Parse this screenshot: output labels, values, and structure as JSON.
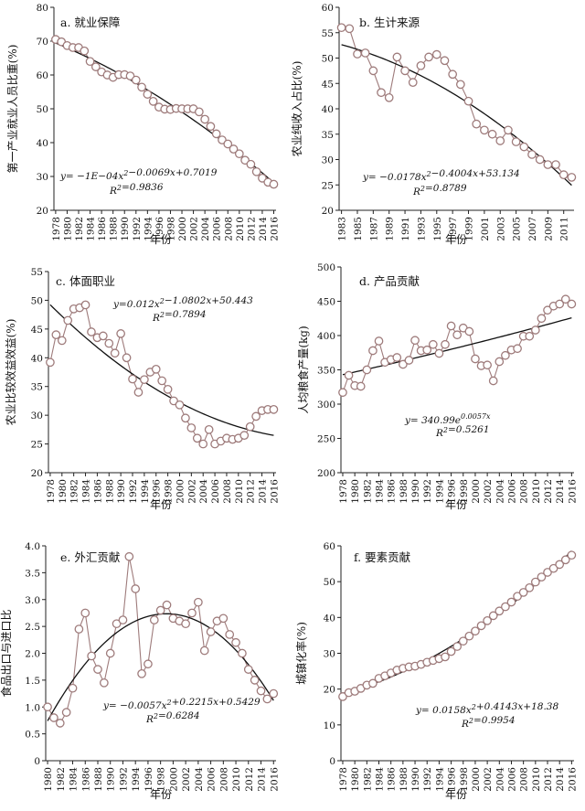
{
  "chart_data": [
    {
      "type": "scatter",
      "title": "a. 就业保障",
      "xlabel": "年份",
      "ylabel": "第一产业就业人员比重(%)",
      "ylim": [
        20,
        80
      ],
      "yticks": [
        20,
        30,
        40,
        50,
        60,
        70,
        80
      ],
      "xticks": [
        1978,
        1980,
        1982,
        1984,
        1986,
        1988,
        1990,
        1992,
        1994,
        1996,
        1998,
        2000,
        2002,
        2004,
        2006,
        2008,
        2010,
        2012,
        2014,
        2016
      ],
      "x": [
        1978,
        1979,
        1980,
        1981,
        1982,
        1983,
        1984,
        1985,
        1986,
        1987,
        1988,
        1989,
        1990,
        1991,
        1992,
        1993,
        1994,
        1995,
        1996,
        1997,
        1998,
        1999,
        2000,
        2001,
        2002,
        2003,
        2004,
        2005,
        2006,
        2007,
        2008,
        2009,
        2010,
        2011,
        2012,
        2013,
        2014,
        2015,
        2016
      ],
      "y": [
        70.5,
        69.8,
        68.7,
        68.1,
        68.1,
        67.1,
        64.0,
        62.4,
        60.9,
        60.0,
        59.3,
        60.1,
        60.1,
        59.7,
        58.5,
        56.4,
        54.3,
        52.2,
        50.5,
        49.9,
        49.8,
        50.1,
        50.0,
        50.0,
        50.0,
        49.1,
        46.9,
        44.8,
        42.6,
        40.8,
        39.6,
        38.1,
        36.7,
        34.8,
        33.6,
        31.4,
        29.5,
        28.3,
        27.7
      ],
      "trend": {
        "type": "poly2",
        "a": -0.0001,
        "b": -0.0069,
        "c": 0.7019
      },
      "equation": "y= −1E−04x²−0.0069x+0.7019",
      "r2": "R²=0.9836",
      "grid": false
    },
    {
      "type": "scatter",
      "title": "b. 生计来源",
      "xlabel": "年份",
      "ylabel": "农业纯收入占比(%)",
      "ylim": [
        20,
        60
      ],
      "yticks": [
        20,
        25,
        30,
        35,
        40,
        45,
        50,
        55,
        60
      ],
      "xticks": [
        1983,
        1985,
        1987,
        1989,
        1991,
        1993,
        1995,
        1997,
        1999,
        2001,
        2003,
        2005,
        2007,
        2009,
        2011
      ],
      "x": [
        1983,
        1984,
        1985,
        1986,
        1987,
        1988,
        1989,
        1990,
        1991,
        1992,
        1993,
        1994,
        1995,
        1996,
        1997,
        1998,
        1999,
        2000,
        2001,
        2002,
        2003,
        2004,
        2005,
        2006,
        2007,
        2008,
        2009,
        2010,
        2011,
        2012
      ],
      "y": [
        56.0,
        55.8,
        50.8,
        51.0,
        47.5,
        43.2,
        42.2,
        50.2,
        47.5,
        45.2,
        48.5,
        50.2,
        50.7,
        49.5,
        46.8,
        44.8,
        41.5,
        37.0,
        35.8,
        35.0,
        33.7,
        35.8,
        33.5,
        32.5,
        31.0,
        30.0,
        29.0,
        29.0,
        27.0,
        26.5
      ],
      "trend": {
        "type": "poly2",
        "a": -0.0178,
        "b": -0.4004,
        "c": 53.134
      },
      "equation": "y= −0.0178x²−0.4004x+53.134",
      "r2": "R²=0.8789",
      "grid": false
    },
    {
      "type": "scatter",
      "title": "c. 体面职业",
      "xlabel": "年份",
      "ylabel": "农业比较效益效益(%)",
      "ylim": [
        20,
        55
      ],
      "yticks": [
        20,
        25,
        30,
        35,
        40,
        45,
        50,
        55
      ],
      "xticks": [
        1978,
        1980,
        1982,
        1984,
        1986,
        1988,
        1990,
        1992,
        1994,
        1996,
        1998,
        2000,
        2002,
        2004,
        2006,
        2008,
        2010,
        2012,
        2014,
        2016
      ],
      "x": [
        1978,
        1979,
        1980,
        1981,
        1982,
        1983,
        1984,
        1985,
        1986,
        1987,
        1988,
        1989,
        1990,
        1991,
        1992,
        1993,
        1994,
        1995,
        1996,
        1997,
        1998,
        1999,
        2000,
        2001,
        2002,
        2003,
        2004,
        2005,
        2006,
        2007,
        2008,
        2009,
        2010,
        2011,
        2012,
        2013,
        2014,
        2015,
        2016
      ],
      "y": [
        39.2,
        44.0,
        43.0,
        46.5,
        48.5,
        48.7,
        49.2,
        44.5,
        43.5,
        43.8,
        42.5,
        40.8,
        44.2,
        40.0,
        36.3,
        34.0,
        36.2,
        37.5,
        38.0,
        36.0,
        34.5,
        32.5,
        31.8,
        29.5,
        27.8,
        26.0,
        25.0,
        27.5,
        25.0,
        25.5,
        26.0,
        25.8,
        26.0,
        26.5,
        28.0,
        29.8,
        30.8,
        31.0,
        31.0
      ],
      "trend": {
        "type": "poly2",
        "a": 0.012,
        "b": -1.0802,
        "c": 50.443
      },
      "equation": "y=0.012x²−1.0802x+50.443",
      "r2": "R²=0.7894",
      "grid": false
    },
    {
      "type": "scatter",
      "title": "d. 产品贡献",
      "xlabel": "年份",
      "ylabel": "人均粮食产量(kg)",
      "ylim": [
        200,
        500
      ],
      "yticks": [
        200,
        250,
        300,
        350,
        400,
        450,
        500
      ],
      "xticks": [
        1978,
        1980,
        1982,
        1984,
        1986,
        1988,
        1990,
        1992,
        1994,
        1996,
        1998,
        2000,
        2002,
        2004,
        2006,
        2008,
        2010,
        2012,
        2014,
        2016
      ],
      "x": [
        1978,
        1979,
        1980,
        1981,
        1982,
        1983,
        1984,
        1985,
        1986,
        1987,
        1988,
        1989,
        1990,
        1991,
        1992,
        1993,
        1994,
        1995,
        1996,
        1997,
        1998,
        1999,
        2000,
        2001,
        2002,
        2003,
        2004,
        2005,
        2006,
        2007,
        2008,
        2009,
        2010,
        2011,
        2012,
        2013,
        2014,
        2015,
        2016
      ],
      "y": [
        317,
        342,
        327,
        326,
        350,
        378,
        392,
        361,
        365,
        368,
        358,
        364,
        393,
        378,
        379,
        387,
        374,
        387,
        414,
        401,
        411,
        406,
        366,
        356,
        357,
        334,
        362,
        371,
        379,
        381,
        399,
        399,
        408,
        425,
        437,
        443,
        446,
        453,
        446
      ],
      "trend": {
        "type": "exp",
        "a": 340.99,
        "b": 0.0057
      },
      "equation": "y= 340.99e^0.0057x",
      "r2": "R²=0.5261",
      "grid": false
    },
    {
      "type": "scatter",
      "title": "e. 外汇贡献",
      "xlabel": "年份",
      "ylabel": "食品出口与进口比",
      "ylim": [
        0,
        4.0
      ],
      "yticks": [
        0,
        0.5,
        1.0,
        1.5,
        2.0,
        2.5,
        3.0,
        3.5,
        4.0
      ],
      "ytick_labels": [
        "0",
        "0.5",
        "1.0",
        "1.5",
        "2.0",
        "2.5",
        "3.0",
        "3.5",
        "4.0"
      ],
      "xticks": [
        1980,
        1982,
        1984,
        1986,
        1988,
        1990,
        1992,
        1994,
        1996,
        1998,
        2000,
        2002,
        2004,
        2006,
        2008,
        2010,
        2012,
        2014,
        2016
      ],
      "x": [
        1980,
        1981,
        1982,
        1983,
        1984,
        1985,
        1986,
        1987,
        1988,
        1989,
        1990,
        1991,
        1992,
        1993,
        1994,
        1995,
        1996,
        1997,
        1998,
        1999,
        2000,
        2001,
        2002,
        2003,
        2004,
        2005,
        2006,
        2007,
        2008,
        2009,
        2010,
        2011,
        2012,
        2013,
        2014,
        2015,
        2016
      ],
      "y": [
        1.0,
        0.8,
        0.7,
        0.9,
        1.35,
        2.45,
        2.75,
        1.95,
        1.7,
        1.45,
        2.0,
        2.55,
        2.62,
        3.8,
        3.2,
        1.62,
        1.8,
        2.62,
        2.8,
        2.9,
        2.65,
        2.6,
        2.55,
        2.75,
        2.95,
        2.05,
        2.4,
        2.6,
        2.65,
        2.35,
        2.2,
        2.0,
        1.7,
        1.5,
        1.3,
        1.15,
        1.25
      ],
      "trend": {
        "type": "poly2",
        "a": -0.0057,
        "b": 0.2215,
        "c": 0.5429
      },
      "equation": "y= −0.0057x²+0.2215x+0.5429",
      "r2": "R²=0.6284",
      "grid": false
    },
    {
      "type": "scatter",
      "title": "f. 要素贡献",
      "xlabel": "年份",
      "ylabel": "城镇化率(%)",
      "ylim": [
        0,
        60
      ],
      "yticks": [
        0,
        10,
        20,
        30,
        40,
        50,
        60
      ],
      "xticks": [
        1978,
        1980,
        1982,
        1984,
        1986,
        1988,
        1990,
        1992,
        1994,
        1996,
        1998,
        2000,
        2002,
        2004,
        2006,
        2008,
        2010,
        2012,
        2014,
        2016
      ],
      "x": [
        1978,
        1979,
        1980,
        1981,
        1982,
        1983,
        1984,
        1985,
        1986,
        1987,
        1988,
        1989,
        1990,
        1991,
        1992,
        1993,
        1994,
        1995,
        1996,
        1997,
        1998,
        1999,
        2000,
        2001,
        2002,
        2003,
        2004,
        2005,
        2006,
        2007,
        2008,
        2009,
        2010,
        2011,
        2012,
        2013,
        2014,
        2015,
        2016
      ],
      "y": [
        17.9,
        19.0,
        19.4,
        20.2,
        21.1,
        21.6,
        23.0,
        23.7,
        24.5,
        25.3,
        25.8,
        26.2,
        26.4,
        26.9,
        27.5,
        28.0,
        28.5,
        29.0,
        30.5,
        31.9,
        33.4,
        34.8,
        36.2,
        37.7,
        39.1,
        40.5,
        41.8,
        43.0,
        44.3,
        45.9,
        47.0,
        48.3,
        49.9,
        51.3,
        52.6,
        53.7,
        54.8,
        56.1,
        57.4
      ],
      "trend": {
        "type": "poly2",
        "a": 0.0158,
        "b": 0.4143,
        "c": 18.38
      },
      "equation": "y= 0.0158x²+0.4143x+18.38",
      "r2": "R²=0.9954",
      "grid": false
    }
  ]
}
